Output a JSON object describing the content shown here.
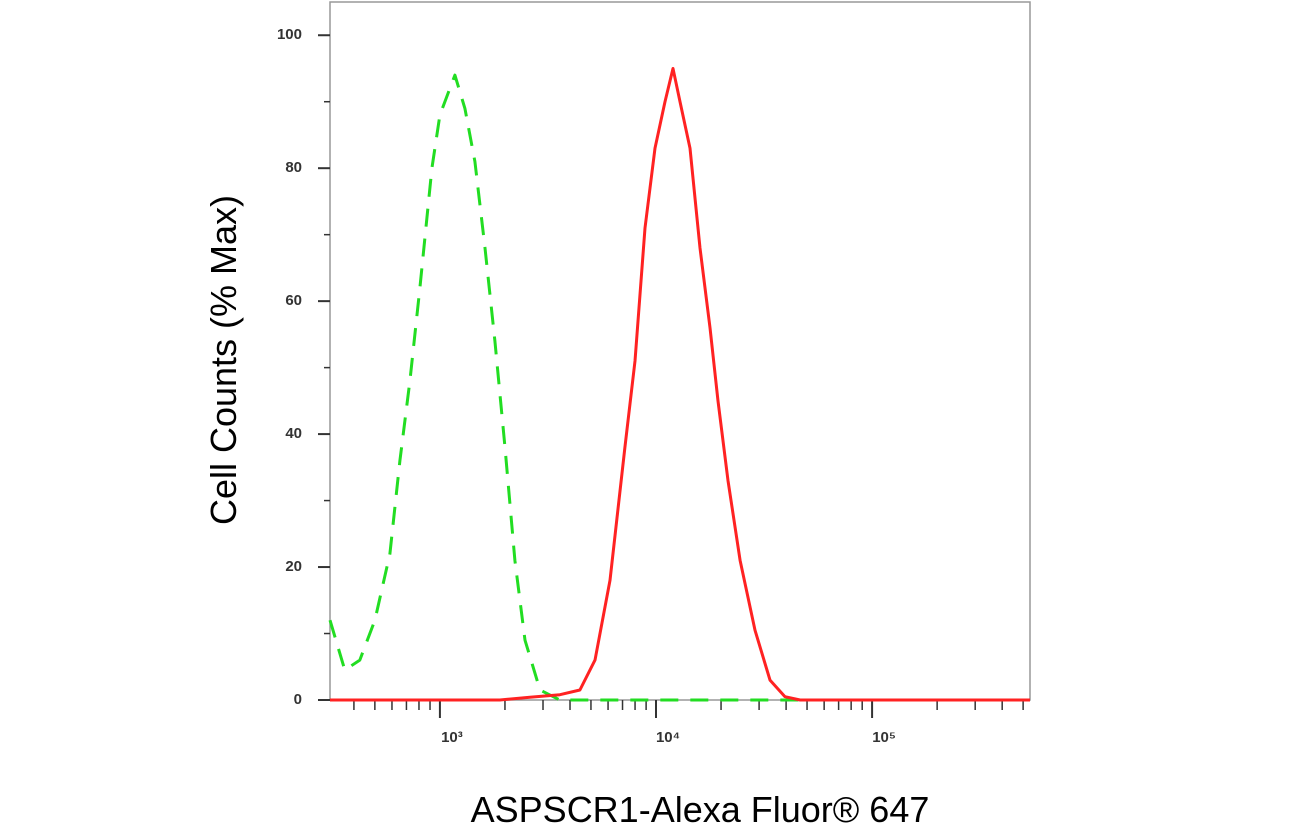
{
  "chart_data": {
    "type": "line",
    "xlabel": "ASPSCR1-Alexa Fluor® 647",
    "ylabel": "Cell Counts (% Max)",
    "xscale": "log",
    "xlim": [
      310,
      538000
    ],
    "ylim": [
      0,
      105
    ],
    "xticks": [
      {
        "value": 1000,
        "label": "10³"
      },
      {
        "value": 10000,
        "label": "10⁴"
      },
      {
        "value": 100000,
        "label": "10⁵"
      }
    ],
    "xminorticks": [
      400,
      500,
      600,
      700,
      800,
      900,
      2000,
      3000,
      4000,
      5000,
      6000,
      7000,
      8000,
      9000,
      20000,
      30000,
      40000,
      50000,
      60000,
      70000,
      80000,
      90000,
      200000,
      300000,
      400000,
      500000
    ],
    "yticks": [
      0,
      20,
      40,
      60,
      80,
      100
    ],
    "yminorticks": [
      10,
      30,
      50,
      70,
      90
    ],
    "series": [
      {
        "color": "#22dd22",
        "linestyle": "dashed",
        "x": [
          310,
          363,
          426,
          500,
          587,
          653,
          726,
          808,
          918,
          1000,
          1173,
          1305,
          1452,
          1616,
          1797,
          2000,
          2224,
          2475,
          2904,
          3593,
          538000
        ],
        "values": [
          12,
          4.5,
          6,
          12,
          22,
          36,
          48,
          62,
          80,
          88,
          94,
          89,
          81,
          68,
          54,
          38,
          21,
          9,
          1.5,
          0,
          0
        ]
      },
      {
        "color": "#ff2222",
        "linestyle": "solid",
        "x": [
          310,
          1896,
          2610,
          3593,
          4446,
          5220,
          6124,
          7182,
          7993,
          8892,
          9892,
          11010,
          11990,
          12920,
          14370,
          15990,
          17780,
          19360,
          21540,
          24490,
          28710,
          33710,
          39550,
          46420,
          538000
        ],
        "values": [
          0,
          0,
          0.4,
          0.8,
          1.5,
          6,
          18,
          38,
          51,
          71,
          83,
          90,
          95,
          90,
          83,
          68,
          56,
          45,
          33,
          21,
          10.5,
          3,
          0.5,
          0,
          0
        ]
      }
    ]
  }
}
